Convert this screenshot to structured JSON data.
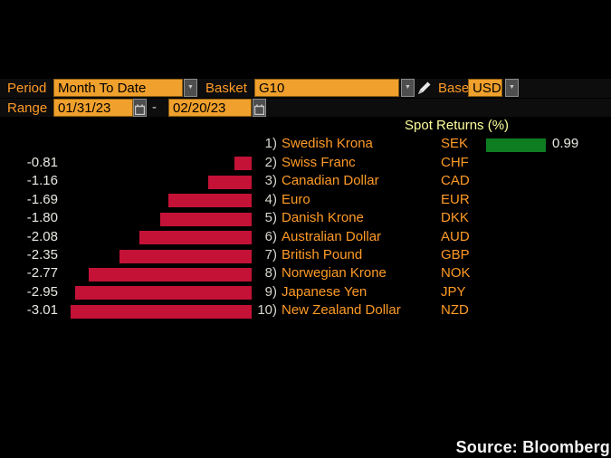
{
  "toolbar": {
    "period_label": "Period",
    "period_value": "Month To Date",
    "basket_label": "Basket",
    "basket_value": "G10",
    "base_label": "Base",
    "base_value": "USD",
    "range_label": "Range",
    "range_start": "01/31/23",
    "range_separator": "-",
    "range_end": "02/20/23"
  },
  "icons": {
    "dropdown_arrow": "▼"
  },
  "chart_data": {
    "type": "bar",
    "orientation": "horizontal",
    "title": "Spot Returns (%)",
    "rank_labels": [
      "1)",
      "2)",
      "3)",
      "4)",
      "5)",
      "6)",
      "7)",
      "8)",
      "9)",
      "10)"
    ],
    "categories": [
      "Swedish Krona",
      "Swiss Franc",
      "Canadian Dollar",
      "Euro",
      "Danish Krone",
      "Australian Dollar",
      "British Pound",
      "Norwegian Krone",
      "Japanese Yen",
      "New Zealand Dollar"
    ],
    "codes": [
      "SEK",
      "CHF",
      "CAD",
      "EUR",
      "DKK",
      "AUD",
      "GBP",
      "NOK",
      "JPY",
      "NZD"
    ],
    "values": [
      0.99,
      -0.81,
      -1.16,
      -1.69,
      -1.8,
      -2.08,
      -2.35,
      -2.77,
      -2.95,
      -3.01
    ],
    "value_labels": [
      "0.99",
      "-0.81",
      "-1.16",
      "-1.69",
      "-1.80",
      "-2.08",
      "-2.35",
      "-2.77",
      "-2.95",
      "-3.01"
    ],
    "positive_color": "#0e7c20",
    "negative_color": "#c41237",
    "legend_position": "none",
    "grid": false
  },
  "footer": {
    "source": "Source: Bloomberg"
  }
}
